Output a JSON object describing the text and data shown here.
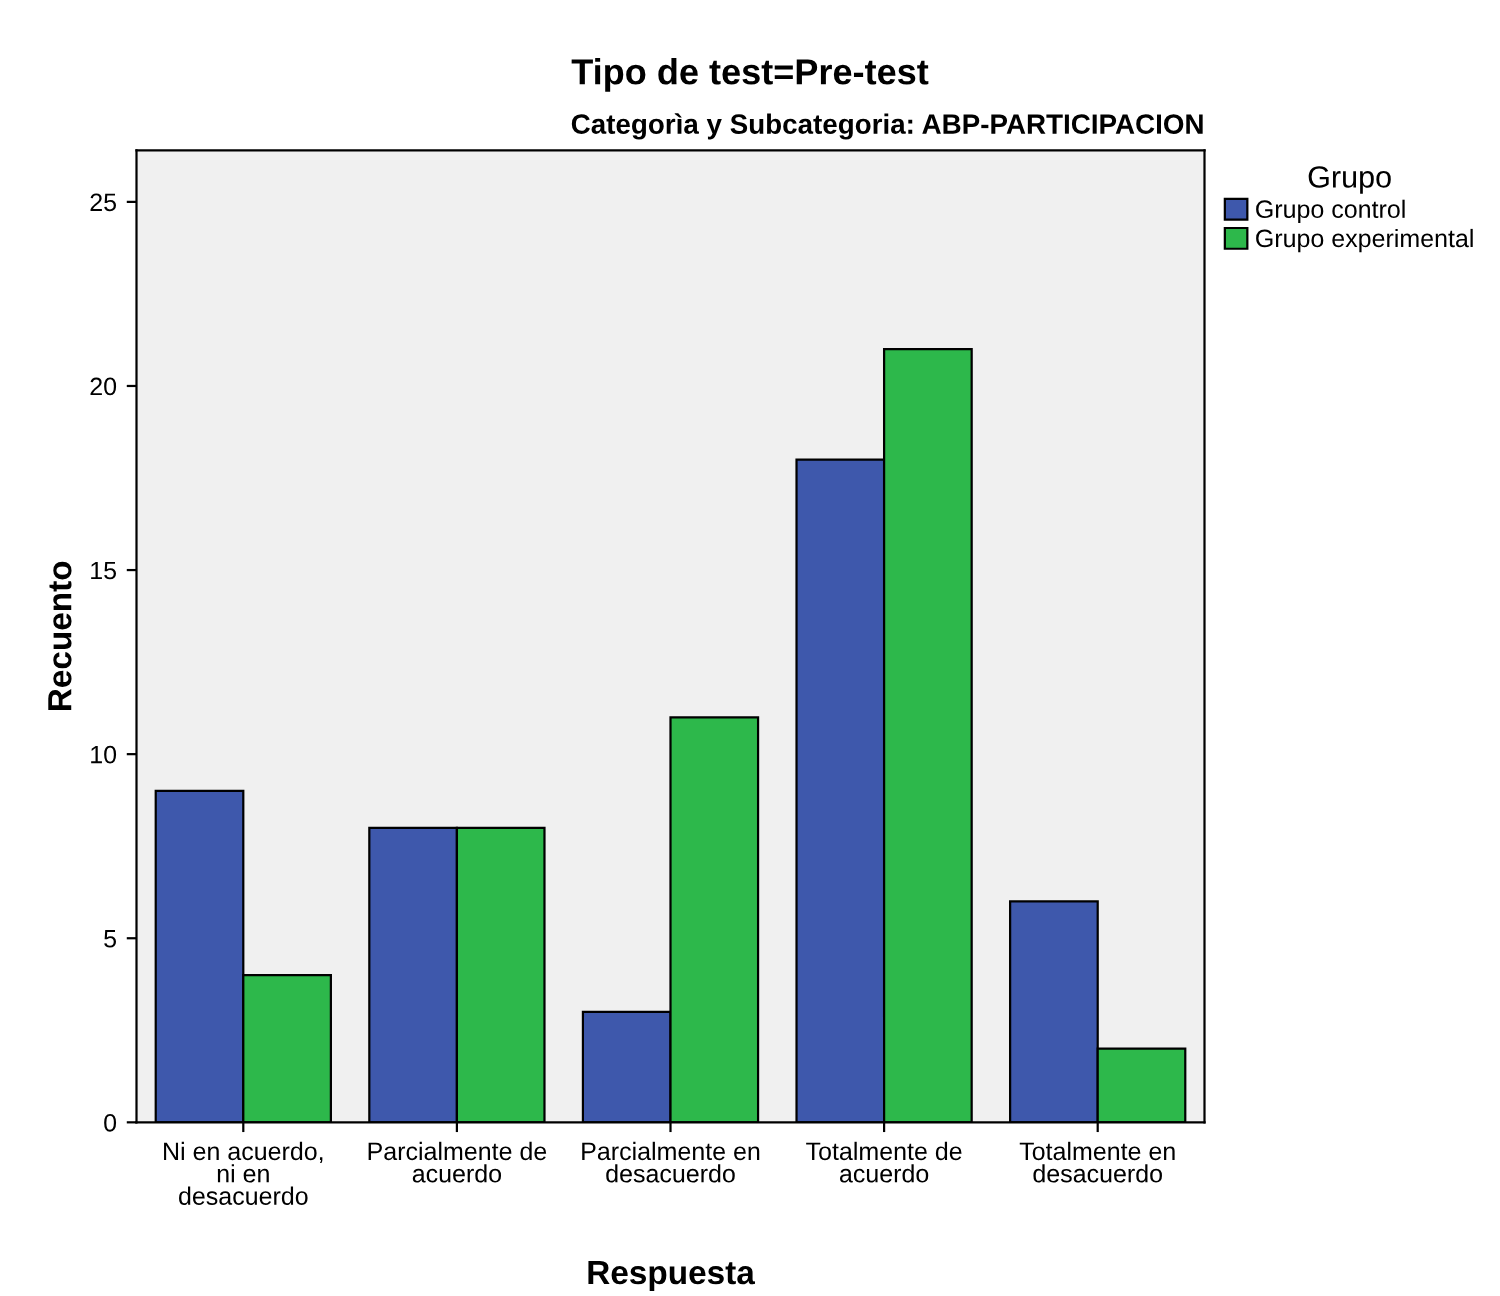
{
  "chart_data": {
    "type": "bar",
    "title": "Tipo de test=Pre-test",
    "subtitle": "Categorìa y Subcategoria: ABP-PARTICIPACION",
    "xlabel": "Respuesta",
    "ylabel": "Recuento",
    "legend_title": "Grupo",
    "categories": [
      "Ni en acuerdo,\nni en\ndesacuerdo",
      "Parcialmente de\nacuerdo",
      "Parcialmente en\ndesacuerdo",
      "Totalmente de\nacuerdo",
      "Totalmente en\ndesacuerdo"
    ],
    "series": [
      {
        "name": "Grupo control",
        "color": "#3e58ac",
        "values": [
          9,
          8,
          3,
          18,
          6
        ]
      },
      {
        "name": "Grupo experimental",
        "color": "#2db84b",
        "values": [
          4,
          8,
          11,
          21,
          2
        ]
      }
    ],
    "ylim": [
      0,
      26.4
    ],
    "yticks": [
      0,
      5,
      10,
      15,
      20,
      25
    ],
    "grid": false,
    "legend": "top right"
  }
}
